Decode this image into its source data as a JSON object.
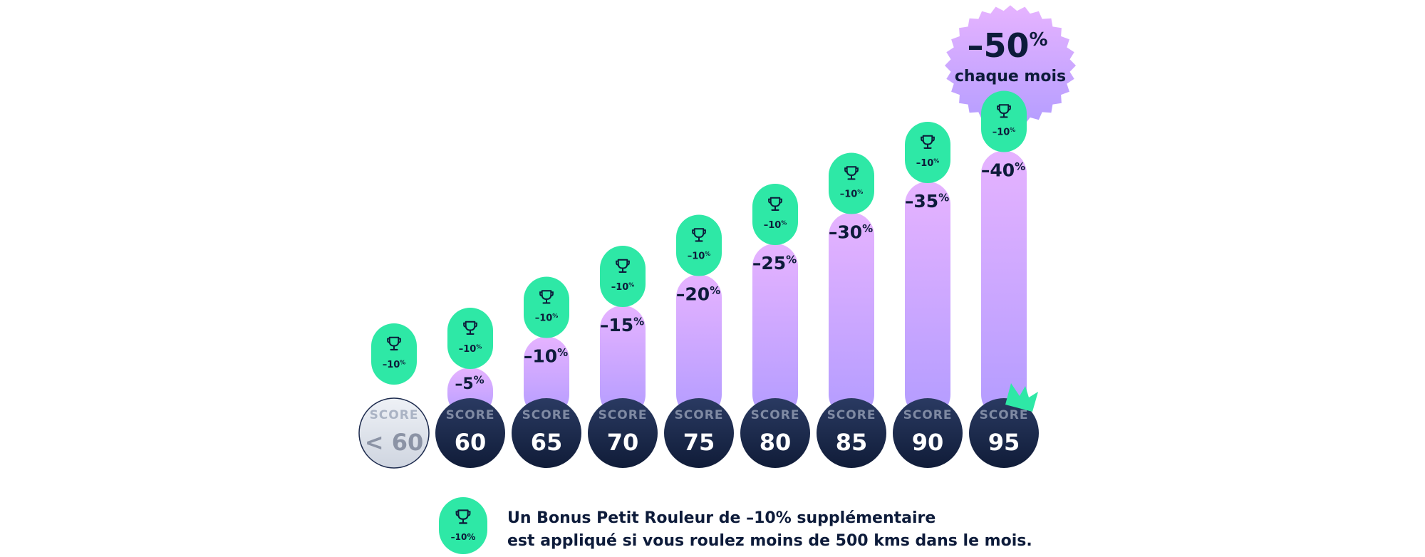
{
  "colors": {
    "bar_top": "#e6b3ff",
    "bar_bottom": "#b39cff",
    "bonus_pill": "#2ee8a6",
    "score_circle": "#1c2a4d",
    "score_circle_inactive": "#d8dde7",
    "text_dark": "#0d1b3a",
    "badge_fill": "#d9acfd",
    "crown": "#2ee8a6"
  },
  "chart_data": {
    "type": "bar",
    "categories": [
      "< 60",
      "60",
      "65",
      "70",
      "75",
      "80",
      "85",
      "90",
      "95"
    ],
    "category_prefix": "SCORE",
    "values": [
      0,
      -5,
      -10,
      -15,
      -20,
      -25,
      -30,
      -35,
      -40
    ],
    "value_labels": [
      "",
      "–5",
      "–10",
      "–15",
      "–20",
      "–25",
      "–30",
      "–35",
      "–40"
    ],
    "unit": "%",
    "bonus": {
      "icon": "trophy-icon",
      "label": "–10",
      "unit": "%"
    },
    "highlight": {
      "value": "–50",
      "unit": "%",
      "label": "chaque mois"
    },
    "title": "",
    "xlabel": "",
    "ylabel": ""
  },
  "legend": {
    "icon": "trophy-icon",
    "badge": "–10%",
    "line1": "Un Bonus Petit Rouleur de –10% supplémentaire",
    "line2": "est appliqué si vous roulez moins de 500 kms dans le mois."
  }
}
